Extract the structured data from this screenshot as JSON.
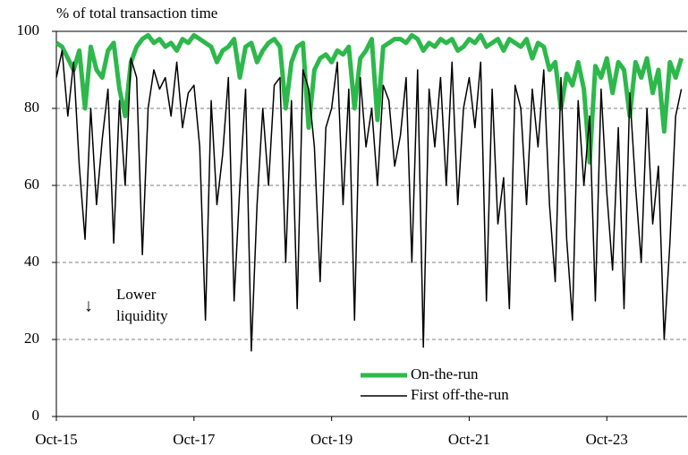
{
  "chart_data": {
    "type": "line",
    "y_axis_label": "% of total transaction time",
    "annotation": [
      "Lower",
      "liquidity"
    ],
    "categories": [
      "Oct-15",
      null,
      null,
      null,
      null,
      null,
      null,
      null,
      null,
      null,
      null,
      null,
      null,
      null,
      null,
      null,
      null,
      null,
      null,
      null,
      null,
      null,
      null,
      null,
      "Oct-17",
      null,
      null,
      null,
      null,
      null,
      null,
      null,
      null,
      null,
      null,
      null,
      null,
      null,
      null,
      null,
      null,
      null,
      null,
      null,
      null,
      null,
      null,
      null,
      "Oct-19",
      null,
      null,
      null,
      null,
      null,
      null,
      null,
      null,
      null,
      null,
      null,
      null,
      null,
      null,
      null,
      null,
      null,
      null,
      null,
      null,
      null,
      null,
      null,
      "Oct-21",
      null,
      null,
      null,
      null,
      null,
      null,
      null,
      null,
      null,
      null,
      null,
      null,
      null,
      null,
      null,
      null,
      null,
      null,
      null,
      null,
      null,
      null,
      null,
      "Oct-23",
      null,
      null,
      null,
      null,
      null,
      null,
      null,
      null,
      null,
      null,
      null,
      null,
      null
    ],
    "series": [
      {
        "name": "On-the-run",
        "color": "#2db84b",
        "width": 5,
        "values": [
          97,
          96,
          93,
          90,
          95,
          80,
          96,
          90,
          88,
          95,
          97,
          85,
          78,
          92,
          96,
          98,
          99,
          97,
          98,
          96,
          97,
          95,
          98,
          97,
          99,
          98,
          97,
          96,
          92,
          95,
          96,
          98,
          88,
          96,
          97,
          92,
          95,
          97,
          98,
          96,
          80,
          92,
          96,
          97,
          75,
          90,
          93,
          94,
          92,
          95,
          94,
          96,
          80,
          93,
          95,
          98,
          77,
          96,
          97,
          98,
          98,
          97,
          99,
          98,
          95,
          97,
          96,
          98,
          97,
          98,
          95,
          96,
          98,
          97,
          99,
          96,
          97,
          98,
          95,
          98,
          97,
          96,
          98,
          93,
          97,
          96,
          90,
          92,
          80,
          89,
          86,
          92,
          85,
          66,
          91,
          88,
          93,
          84,
          92,
          90,
          78,
          92,
          88,
          93,
          84,
          90,
          74,
          92,
          88,
          93
        ]
      },
      {
        "name": "First off-the-run",
        "color": "#000000",
        "width": 1.5,
        "values": [
          88,
          95,
          78,
          92,
          65,
          46,
          80,
          55,
          72,
          85,
          45,
          82,
          60,
          93,
          88,
          42,
          80,
          90,
          85,
          88,
          78,
          92,
          75,
          84,
          86,
          70,
          25,
          82,
          55,
          68,
          88,
          30,
          60,
          85,
          17,
          55,
          80,
          60,
          86,
          88,
          40,
          82,
          28,
          90,
          85,
          70,
          35,
          75,
          80,
          92,
          55,
          85,
          25,
          88,
          70,
          80,
          60,
          86,
          82,
          65,
          73,
          88,
          40,
          90,
          18,
          85,
          70,
          88,
          60,
          92,
          55,
          80,
          88,
          75,
          92,
          30,
          85,
          50,
          62,
          28,
          86,
          80,
          55,
          85,
          70,
          90,
          55,
          35,
          88,
          46,
          25,
          82,
          60,
          78,
          30,
          85,
          58,
          38,
          75,
          28,
          84,
          60,
          40,
          80,
          50,
          65,
          20,
          45,
          78,
          85
        ]
      }
    ],
    "ylim": [
      0,
      100
    ],
    "yticks": [
      0,
      20,
      40,
      60,
      80,
      100
    ],
    "grid": true
  }
}
